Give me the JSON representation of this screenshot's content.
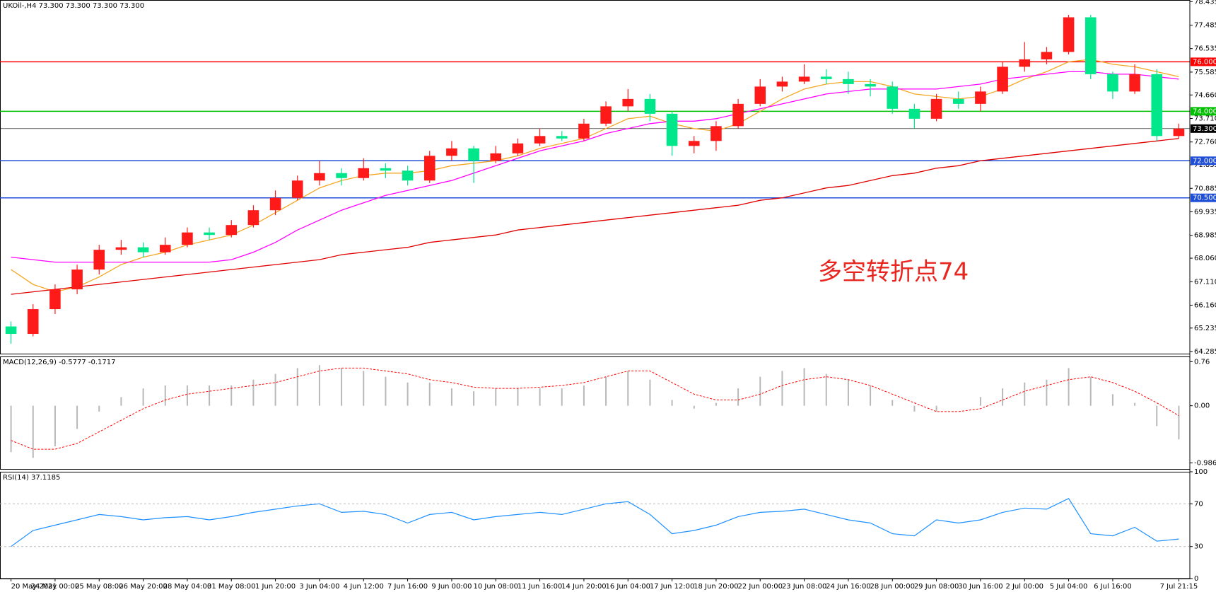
{
  "chart_data": [
    {
      "type": "candlestick",
      "title": "UKOil-,H4  73.300 73.300 73.300 73.300",
      "categories": [
        "20 May 2021",
        null,
        "24 May 00:00",
        null,
        "25 May 08:00",
        null,
        "26 May 20:00",
        null,
        "28 May 04:00",
        null,
        "31 May 08:00",
        null,
        "1 Jun 20:00",
        null,
        "3 Jun 04:00",
        null,
        "4 Jun 12:00",
        null,
        "7 Jun 16:00",
        null,
        "9 Jun 00:00",
        null,
        "10 Jun 08:00",
        null,
        "11 Jun 16:00",
        null,
        "14 Jun 20:00",
        null,
        "16 Jun 04:00",
        null,
        "17 Jun 12:00",
        null,
        "18 Jun 20:00",
        null,
        "22 Jun 00:00",
        null,
        "23 Jun 08:00",
        null,
        "24 Jun 16:00",
        null,
        "28 Jun 00:00",
        null,
        "29 Jun 08:00",
        null,
        "30 Jun 16:00",
        null,
        "2 Jul 00:00",
        null,
        "5 Jul 04:00",
        null,
        "6 Jul 16:00",
        null,
        null,
        "7 Jul 21:15"
      ],
      "candles": [
        [
          65.3,
          65.5,
          64.6,
          65.0
        ],
        [
          65.0,
          66.2,
          64.9,
          66.0
        ],
        [
          66.0,
          67.0,
          65.8,
          66.8
        ],
        [
          66.8,
          67.8,
          66.6,
          67.6
        ],
        [
          67.6,
          68.6,
          67.4,
          68.4
        ],
        [
          68.4,
          68.8,
          68.2,
          68.5
        ],
        [
          68.5,
          68.7,
          68.1,
          68.3
        ],
        [
          68.3,
          68.9,
          68.2,
          68.6
        ],
        [
          68.6,
          69.3,
          68.5,
          69.1
        ],
        [
          69.1,
          69.3,
          68.8,
          69.0
        ],
        [
          69.0,
          69.6,
          68.9,
          69.4
        ],
        [
          69.4,
          70.2,
          69.3,
          70.0
        ],
        [
          70.0,
          70.8,
          69.8,
          70.5
        ],
        [
          70.5,
          71.4,
          70.4,
          71.2
        ],
        [
          71.2,
          72.0,
          71.0,
          71.5
        ],
        [
          71.5,
          71.7,
          71.0,
          71.3
        ],
        [
          71.3,
          72.1,
          71.2,
          71.7
        ],
        [
          71.7,
          71.9,
          71.3,
          71.6
        ],
        [
          71.6,
          71.8,
          71.0,
          71.2
        ],
        [
          71.2,
          72.4,
          71.1,
          72.2
        ],
        [
          72.2,
          72.8,
          72.0,
          72.5
        ],
        [
          72.5,
          72.6,
          71.1,
          72.0
        ],
        [
          72.0,
          72.6,
          71.9,
          72.3
        ],
        [
          72.3,
          72.9,
          72.2,
          72.7
        ],
        [
          72.7,
          73.3,
          72.6,
          73.0
        ],
        [
          73.0,
          73.2,
          72.8,
          72.9
        ],
        [
          72.9,
          73.7,
          72.8,
          73.5
        ],
        [
          73.5,
          74.4,
          73.4,
          74.2
        ],
        [
          74.2,
          74.9,
          74.0,
          74.5
        ],
        [
          74.5,
          74.7,
          73.6,
          73.9
        ],
        [
          73.9,
          74.0,
          72.2,
          72.6
        ],
        [
          72.6,
          73.0,
          72.3,
          72.8
        ],
        [
          72.8,
          73.6,
          72.4,
          73.4
        ],
        [
          73.4,
          74.5,
          73.3,
          74.3
        ],
        [
          74.3,
          75.3,
          74.2,
          75.0
        ],
        [
          75.0,
          75.4,
          74.8,
          75.2
        ],
        [
          75.2,
          75.9,
          75.1,
          75.4
        ],
        [
          75.4,
          75.7,
          75.1,
          75.3
        ],
        [
          75.3,
          75.6,
          74.7,
          75.1
        ],
        [
          75.1,
          75.3,
          74.6,
          75.0
        ],
        [
          75.0,
          75.2,
          73.9,
          74.1
        ],
        [
          74.1,
          74.3,
          73.3,
          73.7
        ],
        [
          73.7,
          74.7,
          73.6,
          74.5
        ],
        [
          74.5,
          74.8,
          74.1,
          74.3
        ],
        [
          74.3,
          75.0,
          74.0,
          74.8
        ],
        [
          74.8,
          76.0,
          74.7,
          75.8
        ],
        [
          75.8,
          76.8,
          75.6,
          76.1
        ],
        [
          76.1,
          76.6,
          75.9,
          76.4
        ],
        [
          76.4,
          77.9,
          76.3,
          77.8
        ],
        [
          77.8,
          77.9,
          75.3,
          75.5
        ],
        [
          75.5,
          75.6,
          74.5,
          74.8
        ],
        [
          74.8,
          75.9,
          74.7,
          75.5
        ],
        [
          75.5,
          75.7,
          72.8,
          73.0
        ],
        [
          73.0,
          73.5,
          72.9,
          73.3
        ]
      ],
      "up_color": "#ff1a1a",
      "down_color": "#00e68a",
      "series": [
        {
          "color": "#f5a623",
          "values": [
            67.6,
            67.0,
            66.7,
            66.9,
            67.3,
            67.8,
            68.1,
            68.3,
            68.6,
            68.8,
            69.0,
            69.4,
            69.9,
            70.4,
            70.9,
            71.2,
            71.4,
            71.5,
            71.5,
            71.6,
            71.8,
            71.9,
            72.0,
            72.2,
            72.5,
            72.7,
            72.9,
            73.3,
            73.7,
            73.8,
            73.5,
            73.3,
            73.2,
            73.5,
            74.0,
            74.5,
            74.9,
            75.1,
            75.2,
            75.2,
            75.0,
            74.7,
            74.6,
            74.5,
            74.6,
            74.9,
            75.3,
            75.6,
            76.0,
            76.1,
            75.9,
            75.8,
            75.6,
            75.4
          ]
        },
        {
          "color": "#ff00ff",
          "values": [
            68.1,
            68.0,
            67.9,
            67.9,
            67.9,
            67.9,
            67.9,
            67.9,
            67.9,
            67.9,
            68.0,
            68.3,
            68.7,
            69.2,
            69.6,
            70.0,
            70.3,
            70.6,
            70.8,
            71.0,
            71.2,
            71.5,
            71.8,
            72.1,
            72.4,
            72.6,
            72.8,
            73.1,
            73.3,
            73.5,
            73.6,
            73.6,
            73.7,
            73.9,
            74.1,
            74.3,
            74.5,
            74.7,
            74.8,
            74.9,
            74.9,
            74.9,
            74.9,
            75.0,
            75.1,
            75.3,
            75.4,
            75.5,
            75.6,
            75.6,
            75.5,
            75.5,
            75.4,
            75.3
          ]
        },
        {
          "color": "#e00000",
          "values": [
            66.6,
            66.7,
            66.8,
            66.9,
            67.0,
            67.1,
            67.2,
            67.3,
            67.4,
            67.5,
            67.6,
            67.7,
            67.8,
            67.9,
            68.0,
            68.2,
            68.3,
            68.4,
            68.5,
            68.7,
            68.8,
            68.9,
            69.0,
            69.2,
            69.3,
            69.4,
            69.5,
            69.6,
            69.7,
            69.8,
            69.9,
            70.0,
            70.1,
            70.2,
            70.4,
            70.5,
            70.7,
            70.9,
            71.0,
            71.2,
            71.4,
            71.5,
            71.7,
            71.8,
            72.0,
            72.1,
            72.2,
            72.3,
            72.4,
            72.5,
            72.6,
            72.7,
            72.8,
            72.9
          ]
        }
      ],
      "hlines": [
        {
          "value": 76,
          "label": "76.000",
          "color": "#ff0000"
        },
        {
          "value": 74,
          "label": "74.000",
          "color": "#00c000"
        },
        {
          "value": 73.3,
          "label": "73.300",
          "color": "#000000"
        },
        {
          "value": 72,
          "label": "72.000",
          "color": "#1f4fd6"
        },
        {
          "value": 70.5,
          "label": "70.500",
          "color": "#1f4fd6"
        }
      ],
      "annotation": "多空转折点74",
      "annotation_color": "#e8251f",
      "ylim": [
        64.2,
        78.5
      ],
      "yticks": [
        78.435,
        77.485,
        76.535,
        75.585,
        {
          "value": 74.66,
          "label": "74.660"
        },
        {
          "value": 73.71,
          "label": "73.710"
        },
        {
          "value": 72.76,
          "label": "72.760"
        },
        71.835,
        70.885,
        69.935,
        68.985,
        {
          "value": 68.06,
          "label": "68.060"
        },
        {
          "value": 67.11,
          "label": "67.110"
        },
        {
          "value": 66.16,
          "label": "66.160"
        },
        65.235,
        64.285
      ]
    },
    {
      "type": "macd",
      "title": "MACD(12,26,9) -0.5777 -0.1717",
      "series": [
        {
          "color": "#b8b8b8",
          "values": [
            -0.8,
            -0.9,
            -0.7,
            -0.4,
            -0.1,
            0.15,
            0.3,
            0.35,
            0.35,
            0.35,
            0.35,
            0.45,
            0.55,
            0.65,
            0.7,
            0.65,
            0.6,
            0.5,
            0.4,
            0.4,
            0.3,
            0.25,
            0.3,
            0.3,
            0.3,
            0.3,
            0.35,
            0.5,
            0.6,
            0.45,
            0.1,
            -0.05,
            0.05,
            0.3,
            0.5,
            0.6,
            0.65,
            0.55,
            0.45,
            0.35,
            0.1,
            -0.1,
            -0.1,
            0.0,
            0.15,
            0.3,
            0.4,
            0.45,
            0.65,
            0.5,
            0.2,
            0.05,
            -0.35,
            -0.58
          ]
        },
        {
          "color": "#ff0000",
          "values": [
            -0.6,
            -0.75,
            -0.75,
            -0.65,
            -0.45,
            -0.25,
            -0.05,
            0.1,
            0.2,
            0.25,
            0.3,
            0.35,
            0.4,
            0.5,
            0.6,
            0.65,
            0.65,
            0.6,
            0.55,
            0.45,
            0.4,
            0.32,
            0.3,
            0.3,
            0.32,
            0.35,
            0.4,
            0.5,
            0.6,
            0.6,
            0.4,
            0.2,
            0.1,
            0.1,
            0.2,
            0.35,
            0.45,
            0.5,
            0.45,
            0.35,
            0.2,
            0.05,
            -0.1,
            -0.1,
            -0.05,
            0.1,
            0.25,
            0.35,
            0.45,
            0.5,
            0.4,
            0.25,
            0.05,
            -0.17
          ]
        }
      ],
      "ylim": [
        -1.09,
        0.85
      ],
      "yticks": [
        0.76,
        {
          "value": 0,
          "label": "0.00"
        },
        -0.9862
      ]
    },
    {
      "type": "line",
      "title": "RSI(14) 37.1185",
      "series": [
        {
          "color": "#1e90ff",
          "values": [
            30,
            45,
            50,
            55,
            60,
            58,
            55,
            57,
            58,
            55,
            58,
            62,
            65,
            68,
            70,
            62,
            63,
            60,
            52,
            60,
            62,
            55,
            58,
            60,
            62,
            60,
            65,
            70,
            72,
            60,
            42,
            45,
            50,
            58,
            62,
            63,
            65,
            60,
            55,
            52,
            42,
            40,
            55,
            52,
            55,
            62,
            66,
            65,
            75,
            42,
            40,
            48,
            35,
            37
          ]
        }
      ],
      "ylim": [
        0,
        100
      ],
      "yticks": [
        100,
        70,
        30,
        0
      ],
      "dashed_ticks": [
        70,
        30
      ]
    }
  ]
}
